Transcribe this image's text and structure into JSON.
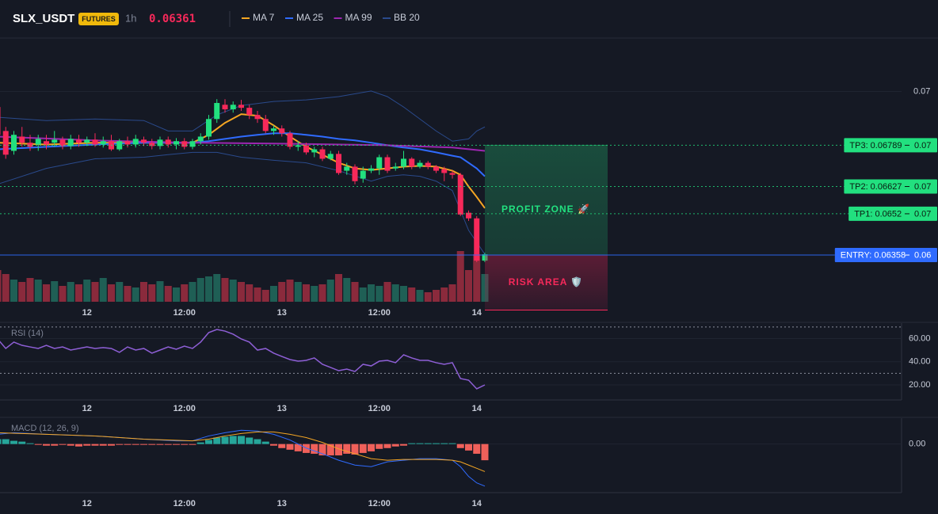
{
  "header": {
    "symbol": "SLX_USDT",
    "badge": "FUTURES",
    "interval": "1h",
    "price": "0.06361"
  },
  "chart_data": [
    {
      "type": "candlestick",
      "categories": [
        null,
        null,
        null,
        null,
        null,
        null,
        null,
        null,
        null,
        null,
        null,
        "12",
        null,
        null,
        null,
        null,
        null,
        null,
        null,
        null,
        null,
        null,
        null,
        "12:00",
        null,
        null,
        null,
        null,
        null,
        null,
        null,
        null,
        null,
        null,
        null,
        "13",
        null,
        null,
        null,
        null,
        null,
        null,
        null,
        null,
        null,
        null,
        null,
        "12:00",
        null,
        null,
        null,
        null,
        null,
        null,
        null,
        null,
        null,
        null,
        null,
        "14",
        null
      ],
      "open": [
        0.06939,
        0.06845,
        0.06767,
        0.06823,
        0.06799,
        0.06792,
        0.06805,
        0.06799,
        0.06811,
        0.06786,
        0.06811,
        0.06799,
        0.06811,
        0.06792,
        0.06805,
        0.06773,
        0.06805,
        0.06792,
        0.06811,
        0.06799,
        0.06786,
        0.06811,
        0.06792,
        0.06805,
        0.06783,
        0.06805,
        0.06823,
        0.06892,
        0.06948,
        0.0693,
        0.06948,
        0.06936,
        0.06908,
        0.06892,
        0.06845,
        0.06855,
        0.06836,
        0.06783,
        0.06789,
        0.06761,
        0.06773,
        0.06736,
        0.06755,
        0.06689,
        0.06705,
        0.06658,
        0.06689,
        0.06698,
        0.06742,
        0.06698,
        0.06705,
        0.06736,
        0.06705,
        0.0672,
        0.06705,
        0.06695,
        0.0668,
        0.06673,
        0.06524,
        0.06502,
        0.06336
      ],
      "high": [
        0.06955,
        0.06861,
        0.06845,
        0.06861,
        0.0683,
        0.0683,
        0.0683,
        0.06845,
        0.06823,
        0.0683,
        0.0683,
        0.06823,
        0.06836,
        0.06823,
        0.0683,
        0.06814,
        0.06823,
        0.0683,
        0.06823,
        0.06814,
        0.06823,
        0.06823,
        0.06817,
        0.06817,
        0.06814,
        0.06836,
        0.06908,
        0.0697,
        0.0697,
        0.06961,
        0.06967,
        0.06948,
        0.06924,
        0.06908,
        0.06867,
        0.06867,
        0.06845,
        0.06805,
        0.06799,
        0.06783,
        0.06783,
        0.06767,
        0.06767,
        0.0672,
        0.06714,
        0.06705,
        0.06711,
        0.06752,
        0.06752,
        0.0672,
        0.06767,
        0.06742,
        0.0673,
        0.06727,
        0.06711,
        0.06705,
        0.06689,
        0.0668,
        0.06533,
        0.06511,
        0.06367
      ],
      "low": [
        0.06814,
        0.06736,
        0.06752,
        0.06783,
        0.06767,
        0.06767,
        0.06773,
        0.06783,
        0.06773,
        0.06773,
        0.06783,
        0.06786,
        0.06783,
        0.0678,
        0.06767,
        0.06767,
        0.0678,
        0.0678,
        0.06786,
        0.06773,
        0.06773,
        0.0678,
        0.06773,
        0.06773,
        0.06773,
        0.06792,
        0.06811,
        0.06877,
        0.06917,
        0.06917,
        0.06924,
        0.06892,
        0.06877,
        0.06836,
        0.0683,
        0.06823,
        0.06773,
        0.06767,
        0.06752,
        0.06742,
        0.06727,
        0.0673,
        0.06673,
        0.06673,
        0.06636,
        0.06642,
        0.0668,
        0.06673,
        0.0668,
        0.06689,
        0.06695,
        0.06695,
        0.06698,
        0.06695,
        0.0668,
        0.06648,
        0.06658,
        0.06511,
        0.06492,
        0.0633,
        0.0633
      ],
      "close": [
        0.0683,
        0.06752,
        0.0683,
        0.06799,
        0.06783,
        0.06814,
        0.06792,
        0.06811,
        0.06786,
        0.06814,
        0.06799,
        0.06811,
        0.06792,
        0.06805,
        0.06773,
        0.06805,
        0.06792,
        0.06814,
        0.06799,
        0.06786,
        0.06811,
        0.06792,
        0.06805,
        0.06783,
        0.06805,
        0.06823,
        0.06892,
        0.06955,
        0.0693,
        0.06948,
        0.06936,
        0.06908,
        0.06892,
        0.06845,
        0.06855,
        0.06836,
        0.06783,
        0.06789,
        0.06761,
        0.06773,
        0.06736,
        0.06755,
        0.0668,
        0.06705,
        0.06648,
        0.06689,
        0.06698,
        0.06742,
        0.06689,
        0.06705,
        0.06736,
        0.06705,
        0.0672,
        0.06705,
        0.06689,
        0.0668,
        0.06673,
        0.06517,
        0.06502,
        0.06336,
        0.06361
      ],
      "volume": [
        40,
        35,
        28,
        25,
        30,
        28,
        22,
        26,
        20,
        25,
        22,
        28,
        25,
        30,
        22,
        25,
        20,
        18,
        25,
        22,
        26,
        20,
        18,
        22,
        25,
        30,
        32,
        35,
        30,
        28,
        25,
        22,
        18,
        15,
        20,
        25,
        28,
        25,
        22,
        20,
        22,
        28,
        35,
        30,
        25,
        18,
        22,
        20,
        25,
        22,
        20,
        18,
        15,
        12,
        15,
        18,
        22,
        64,
        40,
        60,
        35
      ],
      "up_color": "#22e07f",
      "down_color": "#f7295a",
      "volume_up_color": "#1f5f55",
      "volume_down_color": "#8a2a3c",
      "series": [
        {
          "name": "MA 7",
          "color": "#f5a623",
          "x": [
            0,
            6,
            12,
            18,
            24,
            26,
            28,
            30,
            32,
            34,
            36,
            38,
            40,
            42,
            44,
            46,
            48,
            50,
            52,
            54,
            56,
            57,
            58,
            59,
            60
          ],
          "values": [
            0.06799,
            0.06792,
            0.06799,
            0.06799,
            0.06799,
            0.0683,
            0.06877,
            0.06911,
            0.06905,
            0.06867,
            0.06823,
            0.06783,
            0.06752,
            0.0672,
            0.06698,
            0.06692,
            0.06698,
            0.06705,
            0.06708,
            0.06705,
            0.06689,
            0.06673,
            0.06627,
            0.06586,
            0.06542
          ]
        },
        {
          "name": "MA 25",
          "color": "#2f6bff",
          "x": [
            0,
            6,
            12,
            18,
            24,
            26,
            28,
            30,
            32,
            34,
            36,
            38,
            40,
            42,
            44,
            46,
            48,
            50,
            52,
            54,
            56,
            57,
            58,
            59,
            60
          ],
          "values": [
            0.06773,
            0.06783,
            0.06792,
            0.06799,
            0.06799,
            0.06805,
            0.06814,
            0.06823,
            0.0683,
            0.06836,
            0.06836,
            0.0683,
            0.06823,
            0.06814,
            0.06808,
            0.06799,
            0.06789,
            0.0678,
            0.06773,
            0.06761,
            0.06748,
            0.06742,
            0.0672,
            0.06698,
            0.06667
          ]
        },
        {
          "name": "MA 99",
          "color": "#9c27b0",
          "x": [
            0,
            12,
            24,
            36,
            48,
            56,
            60
          ],
          "values": [
            0.06823,
            0.06808,
            0.06799,
            0.06795,
            0.06789,
            0.0678,
            0.06767
          ]
        },
        {
          "name": "BB 20",
          "color": "#2a4a8c",
          "x": [
            0,
            6,
            12,
            18,
            21,
            24,
            27,
            30,
            34,
            38,
            42,
            46,
            48,
            50,
            52,
            54,
            56,
            58,
            59,
            60
          ],
          "upper": [
            0.06899,
            0.06886,
            0.06892,
            0.06886,
            0.06845,
            0.06845,
            0.06908,
            0.06945,
            0.06961,
            0.06967,
            0.0698,
            0.07002,
            0.0698,
            0.06939,
            0.06892,
            0.06845,
            0.06805,
            0.06814,
            0.06845,
            0.06861
          ],
          "lower": [
            0.06636,
            0.06698,
            0.06736,
            0.06742,
            0.06752,
            0.06761,
            0.06761,
            0.06742,
            0.0673,
            0.0672,
            0.06689,
            0.06648,
            0.06667,
            0.06673,
            0.06667,
            0.06648,
            0.06611,
            0.06455,
            0.06408,
            0.06361
          ]
        }
      ],
      "ylim": [
        0.061,
        0.0721
      ],
      "yticks": [
        0.07
      ],
      "targets": [
        {
          "label": "TP3: 0.06789",
          "value": 0.06789,
          "axis_label": "0.07"
        },
        {
          "label": "TP2: 0.06627",
          "value": 0.06627,
          "axis_label": "0.07"
        },
        {
          "label": "TP1: 0.0652",
          "value": 0.0652,
          "axis_label": "0.07"
        }
      ],
      "target_color": "#22e07f",
      "entry": {
        "label": "ENTRY: 0.06358",
        "value": 0.06358,
        "axis_label": "0.06",
        "color": "#2f6bff"
      },
      "stop": 0.06142,
      "profit_label": "PROFIT ZONE 🚀",
      "risk_label": "RISK AREA 🛡️"
    },
    {
      "type": "line",
      "title": "RSI (14)",
      "color": "#8e5fd6",
      "values": [
        59.7,
        51.5,
        57.0,
        54.2,
        52.8,
        51.5,
        54.2,
        51.5,
        52.8,
        50.1,
        51.5,
        52.8,
        51.5,
        52.2,
        51.5,
        48.1,
        52.8,
        50.1,
        51.5,
        47.4,
        50.1,
        52.8,
        50.8,
        53.5,
        51.5,
        57.0,
        65.2,
        67.9,
        66.5,
        63.8,
        59.7,
        57.0,
        50.1,
        51.5,
        47.4,
        44.6,
        41.9,
        40.5,
        41.2,
        43.3,
        37.8,
        35.1,
        32.3,
        33.7,
        31.6,
        37.8,
        36.4,
        40.5,
        41.2,
        39.2,
        46.0,
        43.3,
        41.2,
        41.2,
        39.2,
        37.8,
        39.2,
        25.5,
        24.1,
        16.6,
        20.0
      ],
      "ylim": [
        7,
        72
      ],
      "yticks": [
        {
          "value": 60,
          "label": "60.00"
        },
        {
          "value": 40,
          "label": "40.00"
        },
        {
          "value": 20,
          "label": "20.00"
        }
      ],
      "levels": [
        70,
        30
      ]
    },
    {
      "type": "macd",
      "title": "MACD (12, 26, 9)",
      "histogram": [
        0.00012,
        0.00012,
        8e-05,
        6e-05,
        2e-05,
        -2e-05,
        -4e-05,
        -4e-05,
        -2e-05,
        -4e-05,
        -6e-05,
        -4e-05,
        -4e-05,
        -4e-05,
        -4e-05,
        -2e-05,
        -2e-05,
        -2e-05,
        -2e-05,
        -2e-05,
        -2e-05,
        -2e-05,
        -2e-05,
        -2e-05,
        -2e-05,
        4e-05,
        0.0001,
        0.00016,
        0.00018,
        0.0002,
        0.0002,
        0.00016,
        0.00012,
        6e-05,
        -4e-05,
        -0.0001,
        -0.00014,
        -0.00018,
        -0.00022,
        -0.00024,
        -0.00028,
        -0.00028,
        -0.00028,
        -0.00024,
        -0.00026,
        -0.00022,
        -0.00018,
        -0.00012,
        -0.0001,
        -6e-05,
        -4e-05,
        2e-05,
        2e-05,
        2e-05,
        2e-05,
        2e-05,
        2e-05,
        -0.0001,
        -0.00016,
        -0.00024,
        -0.0004
      ],
      "up_color": "#26a69a",
      "down_color": "#f0605a",
      "macd": {
        "color": "#2f6bff",
        "x": [
          0,
          2,
          6,
          12,
          18,
          22,
          24,
          26,
          28,
          30,
          32,
          34,
          36,
          38,
          40,
          42,
          44,
          46,
          48,
          50,
          52,
          54,
          56,
          57,
          58,
          59,
          60
        ],
        "values": [
          0.00024,
          0.00028,
          0.00024,
          0.0002,
          0.00012,
          8e-05,
          8e-05,
          0.0002,
          0.00028,
          0.00034,
          0.00032,
          0.00024,
          0.0001,
          -0.0001,
          -0.00024,
          -0.0004,
          -0.00052,
          -0.00056,
          -0.00044,
          -0.0004,
          -0.00036,
          -0.00036,
          -0.0004,
          -0.00056,
          -0.0008,
          -0.00096,
          -0.00104
        ]
      },
      "signal": {
        "color": "#f5a623",
        "x": [
          0,
          6,
          12,
          18,
          24,
          26,
          28,
          30,
          32,
          34,
          36,
          38,
          40,
          42,
          44,
          46,
          48,
          50,
          52,
          54,
          56,
          57,
          58,
          59,
          60
        ],
        "values": [
          0.00028,
          0.00024,
          0.0002,
          0.00012,
          8e-05,
          0.00012,
          0.0002,
          0.00026,
          0.0003,
          0.0003,
          0.00024,
          0.00016,
          4e-05,
          -0.00012,
          -0.00024,
          -0.00036,
          -0.0004,
          -0.00038,
          -0.00038,
          -0.00038,
          -0.0004,
          -0.00044,
          -0.00052,
          -0.0006,
          -0.00068
        ]
      },
      "ylim": [
        -0.0012,
        0.0006
      ],
      "yticks": [
        {
          "value": 0,
          "label": "0.00"
        }
      ]
    }
  ]
}
